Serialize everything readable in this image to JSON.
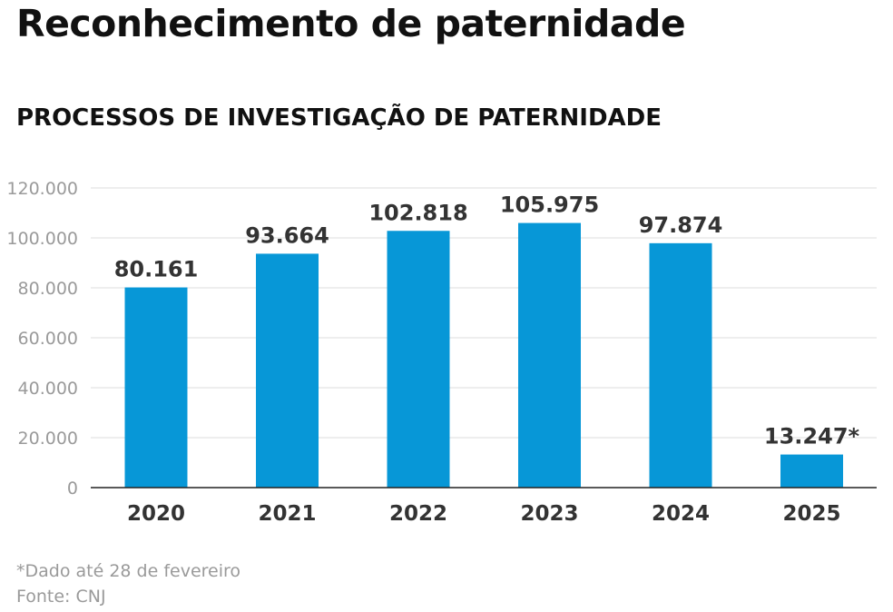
{
  "chart_data": {
    "type": "bar",
    "title": "Reconhecimento de paternidade",
    "subtitle": "PROCESSOS DE INVESTIGAÇÃO DE PATERNIDADE",
    "categories": [
      "2020",
      "2021",
      "2022",
      "2023",
      "2024",
      "2025"
    ],
    "values": [
      80161,
      93664,
      102818,
      105975,
      97874,
      13247
    ],
    "value_labels": [
      "80.161",
      "93.664",
      "102.818",
      "105.975",
      "97.874",
      "13.247*"
    ],
    "y_ticks": [
      0,
      20000,
      40000,
      60000,
      80000,
      100000,
      120000
    ],
    "y_tick_labels": [
      "0",
      "20.000",
      "40.000",
      "60.000",
      "80.000",
      "100.000",
      "120.000"
    ],
    "ylim": [
      0,
      120000
    ],
    "xlabel": "",
    "ylabel": "",
    "grid": true,
    "bar_color": "#0797d7"
  },
  "notes": {
    "footnote": "*Dado até 28 de fevereiro",
    "source": "Fonte: CNJ"
  }
}
